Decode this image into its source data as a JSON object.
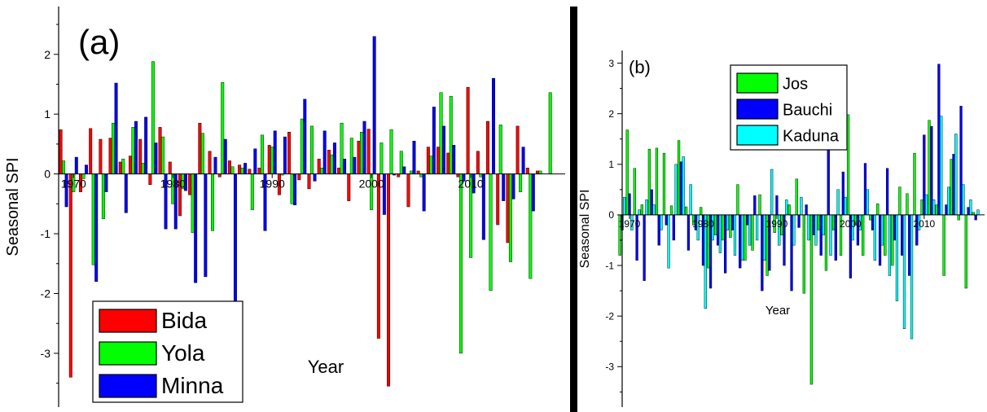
{
  "chart_data": [
    {
      "type": "bar",
      "panel_label": "(a)",
      "xlabel": "Year",
      "ylabel": "Seasonal SPI",
      "ylim": [
        -3.9,
        2.8
      ],
      "xlim": [
        1968.5,
        2019.5
      ],
      "y_ticks": [
        "-3",
        "-2",
        "-1",
        "0",
        "1",
        "2"
      ],
      "x_ticks": [
        "1970",
        "1980",
        "1990",
        "2000",
        "2010"
      ],
      "legend_position": "bottom-left",
      "series": [
        {
          "name": "Bida",
          "color": "#ff0000",
          "x": [
            1969,
            1970,
            1971,
            1972,
            1973,
            1974,
            1975,
            1976,
            1977,
            1978,
            1979,
            1980,
            1981,
            1982,
            1983,
            1984,
            1985,
            1986,
            1987,
            1988,
            1989,
            1990,
            1991,
            1992,
            1993,
            1994,
            1995,
            1996,
            1997,
            1998,
            1999,
            2000,
            2001,
            2002,
            2003,
            2004,
            2005,
            2006,
            2007,
            2008,
            2009,
            2010,
            2011,
            2012,
            2013,
            2014,
            2015,
            2016,
            2017
          ],
          "values": [
            0.74,
            -3.4,
            -0.3,
            0.76,
            0.58,
            0.6,
            0.2,
            0.3,
            0.58,
            -0.18,
            0.78,
            0.2,
            -0.7,
            -0.35,
            0.85,
            0.38,
            -0.05,
            0.22,
            0.15,
            0.08,
            0.1,
            0.48,
            -0.35,
            0.7,
            -0.1,
            -0.25,
            0.25,
            0.4,
            0.1,
            -0.45,
            0.55,
            0.75,
            -2.75,
            -3.55,
            -0.05,
            -0.55,
            0.05,
            0.45,
            0.45,
            0.35,
            -0.05,
            1.45,
            0.38,
            0.88,
            -0.85,
            -1.15,
            0.8,
            0.1,
            0.05
          ]
        },
        {
          "name": "Yola",
          "color": "#00ff00",
          "x": [
            1969,
            1970,
            1971,
            1972,
            1973,
            1974,
            1975,
            1976,
            1977,
            1978,
            1979,
            1980,
            1981,
            1982,
            1983,
            1984,
            1985,
            1986,
            1987,
            1988,
            1989,
            1990,
            1991,
            1992,
            1993,
            1994,
            1995,
            1996,
            1997,
            1998,
            1999,
            2000,
            2001,
            2002,
            2003,
            2004,
            2005,
            2006,
            2007,
            2008,
            2009,
            2010,
            2011,
            2012,
            2013,
            2014,
            2015,
            2016,
            2017,
            2018
          ],
          "values": [
            0.22,
            -0.3,
            -0.08,
            -1.52,
            -0.75,
            0.85,
            0.25,
            0.78,
            0.18,
            1.88,
            0.62,
            -0.5,
            -0.25,
            -0.98,
            0.68,
            -0.95,
            1.53,
            0.12,
            0.1,
            -0.6,
            0.65,
            0.45,
            -0.02,
            -0.5,
            0.92,
            0.8,
            0.1,
            0.32,
            0.85,
            0.6,
            0.7,
            -0.6,
            0.52,
            0.74,
            0.38,
            0.05,
            -0.05,
            0.3,
            1.36,
            1.3,
            -3.0,
            -1.4,
            -0.05,
            -1.95,
            0.82,
            -1.47,
            -0.3,
            -1.75,
            0.05,
            1.36
          ]
        },
        {
          "name": "Minna",
          "color": "#0000ff",
          "x": [
            1969,
            1970,
            1971,
            1972,
            1973,
            1974,
            1975,
            1976,
            1977,
            1978,
            1979,
            1980,
            1981,
            1982,
            1983,
            1984,
            1985,
            1986,
            1987,
            1988,
            1989,
            1990,
            1991,
            1992,
            1993,
            1994,
            1995,
            1996,
            1997,
            1998,
            1999,
            2000,
            2001,
            2002,
            2003,
            2004,
            2005,
            2006,
            2007,
            2008,
            2009,
            2010,
            2011,
            2012,
            2013,
            2014,
            2015,
            2016
          ],
          "values": [
            -0.55,
            0.28,
            0.15,
            -1.8,
            -0.3,
            1.52,
            -0.65,
            0.88,
            0.95,
            0.52,
            -0.92,
            -0.92,
            -0.28,
            -1.82,
            -1.72,
            0.28,
            0.58,
            -3.35,
            0.18,
            0.42,
            -0.95,
            0.72,
            0.62,
            -0.52,
            1.25,
            -0.12,
            0.72,
            0.52,
            0.25,
            0.28,
            0.88,
            2.3,
            -0.68,
            -0.02,
            0.12,
            0.55,
            -0.62,
            1.12,
            0.8,
            0.48,
            -0.12,
            -0.32,
            -1.1,
            1.6,
            -0.45,
            -0.42,
            0.45,
            -0.62
          ]
        }
      ]
    },
    {
      "type": "bar",
      "panel_label": "(b)",
      "xlabel": "Year",
      "ylabel": "Seasonal SPI",
      "ylim": [
        -3.8,
        3.25
      ],
      "xlim": [
        1969.0,
        2018.2
      ],
      "y_ticks": [
        "-3",
        "-2",
        "-1",
        "0",
        "1",
        "2",
        "3"
      ],
      "x_ticks": [
        "1970",
        "1980",
        "1990",
        "2000",
        "2010"
      ],
      "legend_position": "top-left",
      "series": [
        {
          "name": "Jos",
          "color": "#00ff00",
          "x": [
            1969,
            1970,
            1971,
            1972,
            1973,
            1974,
            1975,
            1976,
            1977,
            1978,
            1979,
            1980,
            1981,
            1982,
            1983,
            1984,
            1985,
            1986,
            1987,
            1988,
            1989,
            1990,
            1991,
            1992,
            1993,
            1994,
            1995,
            1996,
            1997,
            1998,
            1999,
            2000,
            2001,
            2002,
            2003,
            2004,
            2005,
            2006,
            2007,
            2008,
            2009,
            2010,
            2011,
            2012,
            2013,
            2014,
            2015,
            2016,
            2017
          ],
          "values": [
            -0.8,
            1.68,
            0.92,
            0.2,
            1.3,
            1.32,
            1.22,
            0.18,
            1.47,
            0.16,
            -0.2,
            0.15,
            -1.05,
            -0.4,
            -0.5,
            -0.45,
            0.6,
            -0.9,
            -0.7,
            0.4,
            -1.2,
            -0.35,
            -0.4,
            0.2,
            0.71,
            -1.55,
            -3.35,
            -0.3,
            -1.1,
            -0.3,
            -0.8,
            1.98,
            -0.2,
            -0.8,
            -0.1,
            0.22,
            -0.8,
            -1.0,
            0.55,
            0.42,
            1.22,
            0.3,
            1.87,
            0.2,
            -1.2,
            1.1,
            -0.1,
            -1.45,
            0.05
          ]
        },
        {
          "name": "Bauchi",
          "color": "#0000ff",
          "x": [
            1969,
            1970,
            1971,
            1972,
            1973,
            1974,
            1975,
            1976,
            1977,
            1978,
            1979,
            1980,
            1981,
            1982,
            1983,
            1984,
            1985,
            1986,
            1987,
            1988,
            1989,
            1990,
            1991,
            1992,
            1993,
            1994,
            1995,
            1996,
            1997,
            1998,
            1999,
            2000,
            2001,
            2002,
            2003,
            2004,
            2005,
            2006,
            2007,
            2008,
            2009,
            2010,
            2011,
            2012,
            2013,
            2014,
            2015,
            2016,
            2017
          ],
          "values": [
            -0.3,
            0.42,
            -0.9,
            -1.3,
            0.5,
            -0.6,
            -0.2,
            -0.5,
            1.05,
            -0.7,
            -0.3,
            -1.0,
            -1.45,
            -0.6,
            -1.15,
            -0.3,
            -1.05,
            -0.2,
            0.38,
            -1.5,
            -1.1,
            0.38,
            -1.0,
            -1.5,
            -0.25,
            0.2,
            -0.4,
            -0.8,
            1.3,
            -0.9,
            0.85,
            -1.25,
            -0.6,
            1.02,
            -0.3,
            -1.0,
            0.92,
            -0.5,
            -0.8,
            -1.2,
            -0.6,
            1.58,
            1.75,
            2.98,
            0.2,
            1.2,
            2.15,
            0.15,
            -0.1
          ]
        },
        {
          "name": "Kaduna",
          "color": "#00ffff",
          "x": [
            1969,
            1970,
            1971,
            1972,
            1973,
            1974,
            1975,
            1976,
            1977,
            1978,
            1979,
            1980,
            1981,
            1982,
            1983,
            1984,
            1985,
            1986,
            1987,
            1988,
            1989,
            1990,
            1991,
            1992,
            1993,
            1994,
            1995,
            1996,
            1997,
            1998,
            1999,
            2000,
            2001,
            2002,
            2003,
            2004,
            2005,
            2006,
            2007,
            2008,
            2009,
            2010,
            2011,
            2012,
            2013,
            2014,
            2015,
            2016,
            2017
          ],
          "values": [
            0.35,
            -0.3,
            0.1,
            0.3,
            0.2,
            -0.3,
            -1.05,
            1.0,
            1.15,
            0.6,
            -0.5,
            -1.85,
            -0.5,
            -0.75,
            -0.3,
            -0.8,
            -0.9,
            -0.6,
            -0.5,
            -0.9,
            0.9,
            -0.6,
            0.3,
            -0.6,
            0.35,
            -0.5,
            -0.6,
            -0.4,
            -0.8,
            0.5,
            0.35,
            -0.5,
            -0.3,
            0.5,
            -0.9,
            -0.6,
            -1.2,
            -1.7,
            -2.25,
            -2.45,
            -0.3,
            0.4,
            0.3,
            1.95,
            0.55,
            1.6,
            0.6,
            0.3,
            0.1
          ]
        }
      ]
    }
  ]
}
